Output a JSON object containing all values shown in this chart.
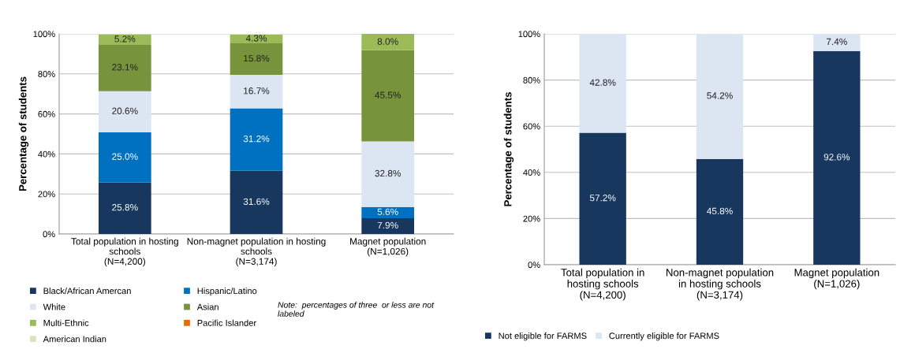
{
  "chart_data": [
    {
      "type": "bar",
      "stacked": true,
      "ylabel": "Percentage of students",
      "categories": [
        "Total population in hosting\nschools\n(N=4,200)",
        "Non-magnet population in hosting\nschools\n(N=3,174)",
        "Magnet population\n(N=1,026)"
      ],
      "series": [
        {
          "name": "Black/African Amercan",
          "color": "#17375e",
          "values": [
            25.8,
            31.6,
            7.9
          ],
          "value_labels": [
            "25.8%",
            "31.6%",
            "7.9%"
          ]
        },
        {
          "name": "Hispanic/Latino",
          "color": "#0070c0",
          "values": [
            25.0,
            31.2,
            5.6
          ],
          "value_labels": [
            "25.0%",
            "31.2%",
            "5.6%"
          ]
        },
        {
          "name": "White",
          "color": "#dce6f2",
          "values": [
            20.6,
            16.7,
            32.8
          ],
          "value_labels": [
            "20.6%",
            "16.7%",
            "32.8%"
          ]
        },
        {
          "name": "Asian",
          "color": "#77933c",
          "values": [
            23.1,
            15.8,
            45.5
          ],
          "value_labels": [
            "23.1%",
            "15.8%",
            "45.5%"
          ]
        },
        {
          "name": "Multi-Ethnic",
          "color": "#9bbb59",
          "values": [
            5.2,
            4.3,
            8.0
          ],
          "value_labels": [
            "5.2%",
            "4.3%",
            "8.0%"
          ]
        },
        {
          "name": "Pacific Islander",
          "color": "#e46c0a",
          "values": [
            null,
            null,
            0.2
          ],
          "value_labels": [
            null,
            null,
            null
          ]
        },
        {
          "name": "American Indian",
          "color": "#d7e4bd",
          "values": [
            null,
            null,
            null
          ],
          "value_labels": [
            null,
            null,
            null
          ]
        }
      ],
      "ylim": [
        0,
        100
      ],
      "yticks": [
        {
          "value": 0,
          "label": "0%"
        },
        {
          "value": 20,
          "label": "20%"
        },
        {
          "value": 40,
          "label": "40%"
        },
        {
          "value": 60,
          "label": "60%"
        },
        {
          "value": 80,
          "label": "80%"
        },
        {
          "value": 100,
          "label": "100%"
        }
      ],
      "grid": "y",
      "legend": "bottom",
      "annotations": [
        "Note:  percentages of three  or less are not\nlabeled"
      ]
    },
    {
      "type": "bar",
      "stacked": true,
      "ylabel": "Percentage of students",
      "categories": [
        "Total population in\nhosting schools\n(N=4,200)",
        "Non-magnet population\nin hosting schools\n(N=3,174)",
        "Magnet population\n(N=1,026)"
      ],
      "series": [
        {
          "name": "Not eligible for FARMS",
          "color": "#17375e",
          "values": [
            57.2,
            45.8,
            92.6
          ],
          "value_labels": [
            "57.2%",
            "45.8%",
            "92.6%"
          ]
        },
        {
          "name": "Currently eligible for FARMS",
          "color": "#dce6f2",
          "values": [
            42.8,
            54.2,
            7.4
          ],
          "value_labels": [
            "42.8%",
            "54.2%",
            "7.4%"
          ]
        }
      ],
      "ylim": [
        0,
        100
      ],
      "yticks": [
        {
          "value": 0,
          "label": "0%"
        },
        {
          "value": 20,
          "label": "20%"
        },
        {
          "value": 40,
          "label": "40%"
        },
        {
          "value": 60,
          "label": "60%"
        },
        {
          "value": 80,
          "label": "80%"
        },
        {
          "value": 100,
          "label": "100%"
        }
      ],
      "grid": "y",
      "legend": "bottom"
    }
  ]
}
